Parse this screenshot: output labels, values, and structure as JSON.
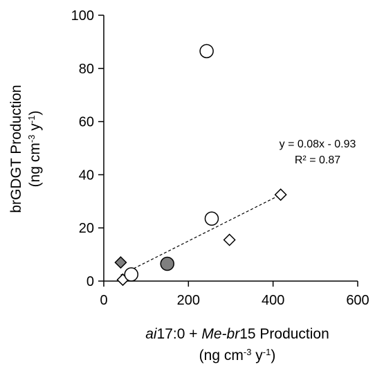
{
  "chart_data": {
    "type": "scatter",
    "xlim": [
      0,
      600
    ],
    "ylim": [
      0,
      100
    ],
    "x_ticks": [
      "0",
      "200",
      "400",
      "600"
    ],
    "y_ticks": [
      "0",
      "20",
      "40",
      "60",
      "80",
      "100"
    ],
    "grid": false,
    "legend": "none",
    "xlabel": {
      "line1": {
        "a": "ai",
        "b": "17:0 + ",
        "c": "Me-br",
        "d": "15 Production"
      },
      "line2": {
        "a": "(ng cm",
        "sup1": "-3",
        "b": " y",
        "sup2": "-1",
        "c": ")"
      }
    },
    "ylabel": {
      "line1": "brGDGT Production",
      "line2": {
        "a": "(ng cm",
        "sup1": "-3",
        "b": " y",
        "sup2": "-1",
        "c": ")"
      }
    },
    "annotation": {
      "equation": "y = 0.08x - 0.93",
      "r2": "R² = 0.87"
    },
    "series": [
      {
        "marker": "diamond",
        "fill": "#ffffff",
        "points": [
          [
            45,
            0.5
          ],
          [
            297,
            15.5
          ],
          [
            418,
            32.5
          ]
        ]
      },
      {
        "marker": "diamond",
        "fill": "#7f7f7f",
        "points": [
          [
            40,
            7
          ]
        ]
      },
      {
        "marker": "circle",
        "fill": "#ffffff",
        "points": [
          [
            65,
            2.5
          ],
          [
            255,
            23.5
          ],
          [
            243,
            86.5
          ]
        ]
      },
      {
        "marker": "circle",
        "fill": "#7f7f7f",
        "points": [
          [
            150,
            6.5
          ]
        ]
      }
    ],
    "trendline": {
      "slope": 0.08,
      "intercept": -0.93,
      "x_range": [
        40,
        420
      ],
      "style": "dashed"
    },
    "colors": {
      "dark_marker": "#7f7f7f",
      "axis": "#000000"
    }
  }
}
